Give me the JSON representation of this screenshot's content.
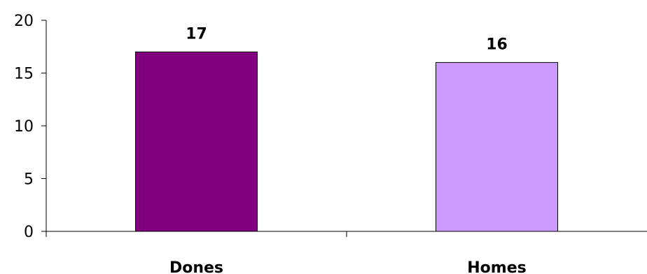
{
  "chart_data": {
    "type": "bar",
    "categories": [
      "Dones",
      "Homes"
    ],
    "values": [
      17,
      16
    ],
    "colors": [
      "#800080",
      "#cc99ff"
    ],
    "ylim": [
      0,
      20
    ],
    "yticks": [
      0,
      5,
      10,
      15,
      20
    ],
    "ytick_labels": [
      "0",
      "5",
      "10",
      "15",
      "20"
    ],
    "data_labels": [
      "17",
      "16"
    ],
    "title": "",
    "xlabel": "",
    "ylabel": "",
    "grid": false,
    "legend": false
  }
}
